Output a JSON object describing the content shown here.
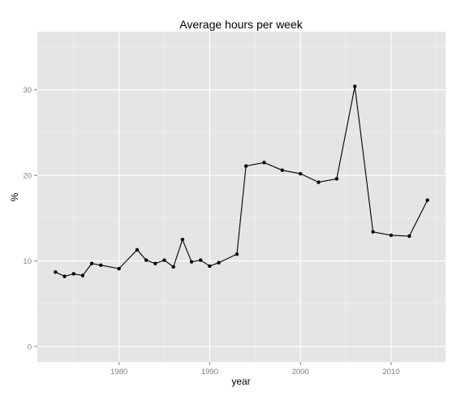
{
  "chart_data": {
    "type": "line",
    "title": "Average hours per week",
    "xlabel": "year",
    "ylabel": "%",
    "xlim": [
      1971,
      2016
    ],
    "ylim": [
      -1.8,
      36.8
    ],
    "x_ticks": [
      1980,
      1990,
      2000,
      2010
    ],
    "y_ticks": [
      0,
      10,
      20,
      30
    ],
    "grid": true,
    "colors": {
      "panel": "#e5e5e5",
      "series": "#000000",
      "tick_label": "#7f7f7f"
    },
    "series": [
      {
        "x": [
          1973,
          1974,
          1975,
          1976,
          1977,
          1978,
          1980,
          1982,
          1983,
          1984,
          1985,
          1986,
          1987,
          1988,
          1989,
          1990,
          1991,
          1993,
          1994,
          1996,
          1998,
          2000,
          2002,
          2004,
          2006,
          2008,
          2010,
          2012,
          2014
        ],
        "y": [
          8.7,
          8.2,
          8.5,
          8.3,
          9.7,
          9.5,
          9.1,
          11.3,
          10.1,
          9.7,
          10.1,
          9.3,
          12.5,
          9.9,
          10.1,
          9.4,
          9.8,
          10.8,
          21.1,
          21.5,
          20.6,
          20.2,
          19.2,
          19.6,
          30.4,
          13.4,
          13.0,
          12.9,
          17.1
        ]
      }
    ]
  }
}
